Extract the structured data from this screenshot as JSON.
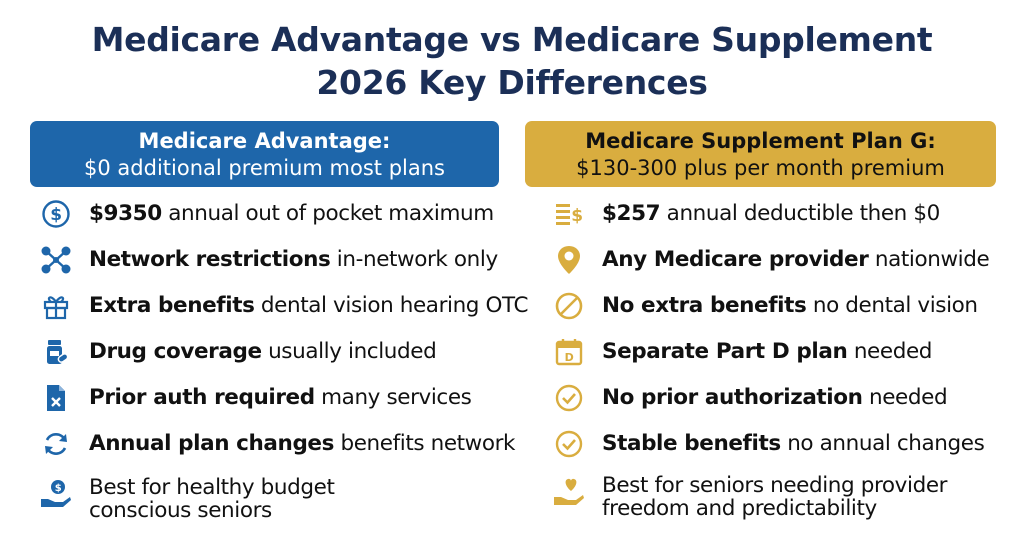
{
  "title": {
    "line1": "Medicare Advantage vs Medicare Supplement",
    "line2": "2026 Key Differences"
  },
  "colors": {
    "title": "#1b2f57",
    "advantage_header": "#1e66aa",
    "supplement_header": "#d9ad3f",
    "advantage_icon": "#1e66aa",
    "supplement_icon": "#d9ad3f"
  },
  "advantage": {
    "header_line1": "Medicare Advantage:",
    "header_line2": "$0 additional premium most plans",
    "rows": [
      {
        "icon": "dollar-circle-icon",
        "bold": "$9350",
        "rest": " annual out of pocket maximum"
      },
      {
        "icon": "network-icon",
        "bold": "Network restrictions",
        "rest": " in-network only"
      },
      {
        "icon": "gift-icon",
        "bold": "Extra benefits",
        "rest": " dental vision hearing OTC"
      },
      {
        "icon": "pill-bottle-icon",
        "bold": "Drug coverage",
        "rest": " usually included"
      },
      {
        "icon": "document-x-icon",
        "bold": "Prior auth required",
        "rest": " many services"
      },
      {
        "icon": "refresh-icon",
        "bold": "Annual plan changes",
        "rest": " benefits network"
      },
      {
        "icon": "hand-coin-icon",
        "bold": "",
        "rest": "Best for healthy budget conscious seniors"
      }
    ]
  },
  "supplement": {
    "header_line1": "Medicare Supplement Plan G:",
    "header_line2": "$130-300 plus per month premium",
    "rows": [
      {
        "icon": "money-stack-icon",
        "bold": "$257",
        "rest": " annual deductible then $0"
      },
      {
        "icon": "location-pin-icon",
        "bold": "Any Medicare provider",
        "rest": " nationwide"
      },
      {
        "icon": "no-symbol-icon",
        "bold": "No extra benefits",
        "rest": " no dental vision"
      },
      {
        "icon": "calendar-d-icon",
        "bold": "Separate Part D plan",
        "rest": " needed"
      },
      {
        "icon": "check-circle-icon",
        "bold": "No prior authorization",
        "rest": " needed"
      },
      {
        "icon": "check-circle-icon",
        "bold": "Stable benefits",
        "rest": " no annual changes"
      },
      {
        "icon": "hand-heart-icon",
        "bold": "",
        "rest": "Best for seniors needing provider freedom and predictability"
      }
    ]
  }
}
